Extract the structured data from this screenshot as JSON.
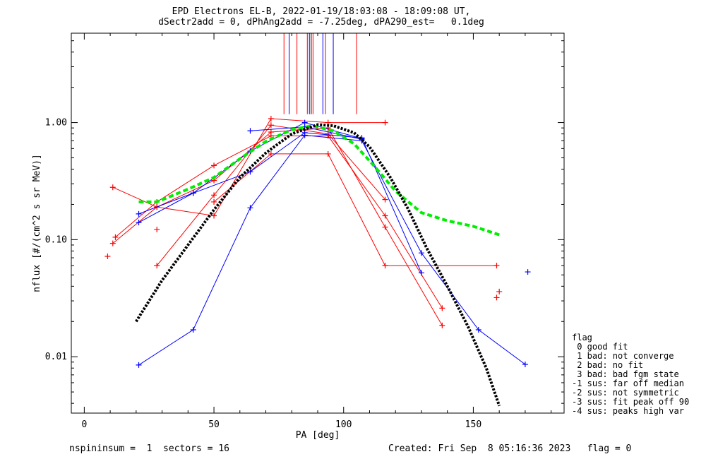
{
  "title_line1": "EPD Electrons EL-B, 2022-01-19/18:03:08 - 18:09:08 UT,",
  "title_line2": "dSectr2add = 0, dPhAng2add = -7.25deg, dPA290_est=   0.1deg",
  "footer_left": "nspininsum =  1  sectors = 16",
  "footer_right": "Created: Fri Sep  8 05:16:36 2023   flag = 0",
  "legend": {
    "title": "flag",
    "items": [
      " 0 good fit",
      " 1 bad: not converge",
      " 2 bad: no fit",
      " 3 bad: bad fgm state",
      "-1 sus: far off median",
      "-2 sus: not symmetric",
      "-3 sus: fit peak off 90",
      "-4 sus: peaks high var"
    ]
  },
  "colors": {
    "red": "#ff0000",
    "blue": "#0000ff",
    "green": "#00ee00",
    "black": "#000000"
  },
  "chart_data": {
    "type": "line",
    "xlabel": "PA [deg]",
    "ylabel": "nflux [#/(cm^2 s sr MeV)]",
    "xlim": [
      -5,
      185
    ],
    "ylim": [
      0.0033,
      5.8
    ],
    "ylog": true,
    "xticks": [
      0,
      50,
      100,
      150
    ],
    "yticks": [
      {
        "value": 0.01,
        "label": "0.01"
      },
      {
        "value": 0.1,
        "label": "0.10"
      },
      {
        "value": 1.0,
        "label": "1.00"
      }
    ],
    "series": [
      {
        "color": "red",
        "points": [
          [
            11,
            0.28
          ],
          [
            28,
            0.19
          ],
          [
            50,
            0.16
          ],
          [
            72,
            1.08
          ],
          [
            94,
            1.0
          ],
          [
            116,
            1.0
          ]
        ]
      },
      {
        "color": "red",
        "points": [
          [
            12,
            0.105
          ],
          [
            28,
            0.21
          ],
          [
            50,
            0.43
          ],
          [
            72,
            0.77
          ],
          [
            94,
            0.77
          ],
          [
            116,
            0.16
          ],
          [
            138,
            0.026
          ]
        ]
      },
      {
        "color": "red",
        "points": [
          [
            11,
            0.093
          ],
          [
            28,
            0.19
          ],
          [
            50,
            0.32
          ],
          [
            72,
            0.83
          ],
          [
            94,
            0.9
          ],
          [
            116,
            0.128
          ],
          [
            138,
            0.0185
          ]
        ]
      },
      {
        "color": "red",
        "points": [
          [
            28,
            0.06
          ],
          [
            50,
            0.24
          ],
          [
            72,
            0.95
          ],
          [
            94,
            0.8
          ],
          [
            116,
            0.22
          ]
        ]
      },
      {
        "color": "red",
        "points": [
          [
            50,
            0.21
          ],
          [
            72,
            0.54
          ],
          [
            94,
            0.54
          ],
          [
            116,
            0.06
          ],
          [
            159,
            0.06
          ]
        ]
      },
      {
        "color": "blue",
        "points": [
          [
            21,
            0.0085
          ],
          [
            42,
            0.017
          ],
          [
            64,
            0.187
          ],
          [
            85,
            0.78
          ],
          [
            107,
            0.7
          ],
          [
            130,
            0.077
          ],
          [
            152,
            0.017
          ],
          [
            170,
            0.0086
          ]
        ]
      },
      {
        "color": "blue",
        "points": [
          [
            21,
            0.14
          ],
          [
            42,
            0.25
          ],
          [
            64,
            0.38
          ],
          [
            85,
            0.82
          ],
          [
            107,
            0.74
          ],
          [
            130,
            0.052
          ]
        ]
      },
      {
        "color": "blue",
        "points": [
          [
            21,
            0.166
          ],
          [
            42,
            0.25
          ],
          [
            64,
            0.57
          ],
          [
            85,
            1.0
          ],
          [
            107,
            0.73
          ]
        ]
      },
      {
        "color": "blue",
        "points": [
          [
            64,
            0.85
          ],
          [
            85,
            0.92
          ],
          [
            107,
            0.72
          ]
        ]
      }
    ],
    "markers_only": [
      {
        "color": "red",
        "points": [
          [
            9,
            0.072
          ],
          [
            28,
            0.122
          ],
          [
            159,
            0.032
          ],
          [
            160,
            0.036
          ]
        ]
      },
      {
        "color": "blue",
        "points": [
          [
            171,
            0.053
          ]
        ]
      }
    ],
    "fit_curves": [
      {
        "color": "green",
        "style": "dashed",
        "points": [
          [
            21,
            0.21
          ],
          [
            28,
            0.21
          ],
          [
            40,
            0.27
          ],
          [
            50,
            0.34
          ],
          [
            60,
            0.49
          ],
          [
            70,
            0.69
          ],
          [
            80,
            0.87
          ],
          [
            88,
            0.94
          ],
          [
            96,
            0.85
          ],
          [
            104,
            0.66
          ],
          [
            112,
            0.42
          ],
          [
            120,
            0.26
          ],
          [
            130,
            0.17
          ],
          [
            140,
            0.145
          ],
          [
            150,
            0.13
          ],
          [
            160,
            0.11
          ]
        ]
      },
      {
        "color": "black",
        "style": "dotted",
        "points": [
          [
            20,
            0.02
          ],
          [
            30,
            0.045
          ],
          [
            40,
            0.09
          ],
          [
            50,
            0.18
          ],
          [
            60,
            0.34
          ],
          [
            70,
            0.55
          ],
          [
            80,
            0.8
          ],
          [
            90,
            0.96
          ],
          [
            96,
            0.94
          ],
          [
            104,
            0.82
          ],
          [
            110,
            0.62
          ],
          [
            118,
            0.34
          ],
          [
            125,
            0.18
          ],
          [
            132,
            0.085
          ],
          [
            140,
            0.04
          ],
          [
            148,
            0.018
          ],
          [
            155,
            0.008
          ],
          [
            160,
            0.0038
          ]
        ]
      }
    ],
    "vertical_lines": [
      {
        "color": "red",
        "x": 77
      },
      {
        "color": "blue",
        "x": 79
      },
      {
        "color": "red",
        "x": 82
      },
      {
        "color": "red",
        "x": 86
      },
      {
        "color": "blue",
        "x": 86.8
      },
      {
        "color": "black",
        "x": 87.5
      },
      {
        "color": "red",
        "x": 88.2
      },
      {
        "color": "blue",
        "x": 92
      },
      {
        "color": "red",
        "x": 93
      },
      {
        "color": "blue",
        "x": 96
      },
      {
        "color": "red",
        "x": 105
      }
    ],
    "vertical_lines_y": [
      1.18,
      5.8
    ]
  }
}
